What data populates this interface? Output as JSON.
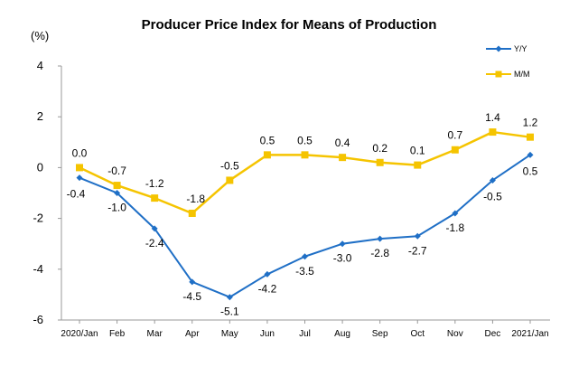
{
  "chart_data": {
    "type": "line",
    "title": "Producer Price Index for Means of Production",
    "ylabel": "(%)",
    "xlabel": "",
    "categories": [
      "2020/Jan",
      "Feb",
      "Mar",
      "Apr",
      "May",
      "Jun",
      "Jul",
      "Aug",
      "Sep",
      "Oct",
      "Nov",
      "Dec",
      "2021/Jan"
    ],
    "ylim": [
      -6,
      4
    ],
    "yticks": [
      -6,
      -4,
      -2,
      0,
      2,
      4
    ],
    "grid": false,
    "legend_position": "top-right",
    "series": [
      {
        "name": "Y/Y",
        "color": "#1f6fc6",
        "marker": "diamond",
        "values": [
          -0.4,
          -1.0,
          -2.4,
          -4.5,
          -5.1,
          -4.2,
          -3.5,
          -3.0,
          -2.8,
          -2.7,
          -1.8,
          -0.5,
          0.5
        ],
        "labels": [
          "-0.4",
          "-1.0",
          "-2.4",
          "-4.5",
          "-5.1",
          "-4.2",
          "-3.5",
          "-3.0",
          "-2.8",
          "-2.7",
          "-1.8",
          "-0.5",
          "0.5"
        ]
      },
      {
        "name": "M/M",
        "color": "#f5c400",
        "marker": "square",
        "values": [
          0.0,
          -0.7,
          -1.2,
          -1.8,
          -0.5,
          0.5,
          0.5,
          0.4,
          0.2,
          0.1,
          0.7,
          1.4,
          1.2
        ],
        "labels": [
          "0.0",
          "-0.7",
          "-1.2",
          "-1.8",
          "-0.5",
          "0.5",
          "0.5",
          "0.4",
          "0.2",
          "0.1",
          "0.7",
          "1.4",
          "1.2"
        ]
      }
    ]
  }
}
